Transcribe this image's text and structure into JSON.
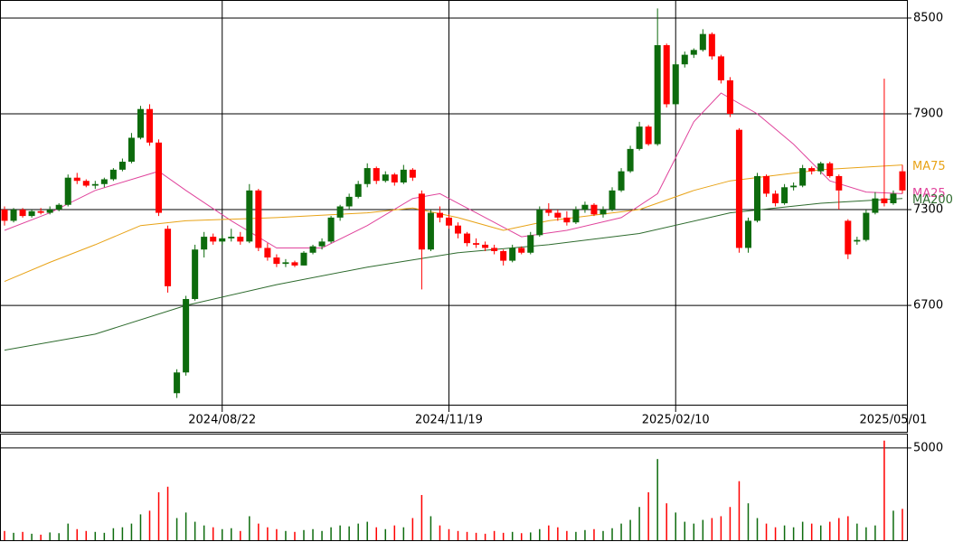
{
  "chart_data": {
    "type": "candlestick",
    "up_color": "#0d6b0d",
    "down_color": "#ff0000",
    "open": [
      7300,
      7230,
      7300,
      7260,
      7290,
      7280,
      7300,
      7330,
      7500,
      7480,
      7450,
      7460,
      7490,
      7550,
      7600,
      7750,
      7930,
      7720,
      7180,
      6150,
      6280,
      6740,
      7050,
      7130,
      7100,
      7120,
      7130,
      7100,
      7420,
      7060,
      7000,
      6960,
      6970,
      6950,
      7030,
      7070,
      7100,
      7250,
      7320,
      7380,
      7460,
      7560,
      7480,
      7520,
      7470,
      7550,
      7400,
      7050,
      7280,
      7250,
      7200,
      7150,
      7090,
      7080,
      7060,
      7040,
      6980,
      7060,
      7030,
      7140,
      7300,
      7280,
      7250,
      7220,
      7300,
      7330,
      7270,
      7300,
      7420,
      7540,
      7680,
      7820,
      7710,
      8330,
      7960,
      8210,
      8270,
      8300,
      8400,
      8260,
      8110,
      7800,
      7060,
      7230,
      7510,
      7400,
      7340,
      7440,
      7450,
      7560,
      7540,
      7590,
      7510,
      7230,
      7100,
      7110,
      7280,
      7370,
      7340,
      7540
    ],
    "high": [
      7320,
      7310,
      7310,
      7300,
      7310,
      7320,
      7340,
      7520,
      7530,
      7490,
      7480,
      7500,
      7560,
      7620,
      7780,
      7950,
      7960,
      7740,
      7200,
      6300,
      6760,
      7080,
      7160,
      7150,
      7140,
      7180,
      7160,
      7460,
      7430,
      7090,
      7020,
      6990,
      6980,
      7040,
      7080,
      7120,
      7260,
      7330,
      7400,
      7480,
      7590,
      7570,
      7540,
      7530,
      7580,
      7560,
      7420,
      7300,
      7320,
      7270,
      7220,
      7160,
      7120,
      7100,
      7080,
      7050,
      7080,
      7070,
      7160,
      7320,
      7340,
      7300,
      7290,
      7320,
      7350,
      7340,
      7320,
      7440,
      7560,
      7700,
      7850,
      7830,
      8560,
      8340,
      8230,
      8290,
      8310,
      8430,
      8410,
      8270,
      8130,
      7810,
      7250,
      7530,
      7520,
      7420,
      7460,
      7470,
      7580,
      7570,
      7600,
      7600,
      7520,
      7240,
      7130,
      7300,
      7410,
      8120,
      7420,
      7580
    ],
    "low": [
      7200,
      7220,
      7250,
      7250,
      7270,
      7270,
      7290,
      7320,
      7460,
      7440,
      7430,
      7440,
      7480,
      7540,
      7590,
      7740,
      7700,
      7260,
      6780,
      6120,
      6260,
      6730,
      7000,
      7080,
      7080,
      7100,
      7080,
      7090,
      7040,
      6980,
      6940,
      6940,
      6940,
      6950,
      7020,
      7050,
      7090,
      7230,
      7300,
      7370,
      7440,
      7460,
      7470,
      7450,
      7460,
      7480,
      6800,
      7040,
      7220,
      7180,
      7120,
      7070,
      7060,
      7040,
      7020,
      6950,
      6970,
      7020,
      7020,
      7130,
      7260,
      7230,
      7200,
      7210,
      7280,
      7260,
      7250,
      7290,
      7410,
      7530,
      7670,
      7700,
      7700,
      7940,
      7950,
      8190,
      8250,
      8290,
      8240,
      8090,
      7880,
      7030,
      7030,
      7220,
      7380,
      7320,
      7330,
      7420,
      7440,
      7520,
      7520,
      7500,
      7300,
      6990,
      7080,
      7100,
      7270,
      7320,
      7330,
      7400
    ],
    "close": [
      7230,
      7300,
      7260,
      7290,
      7280,
      7300,
      7330,
      7500,
      7480,
      7450,
      7460,
      7490,
      7550,
      7600,
      7750,
      7930,
      7720,
      7280,
      6820,
      6280,
      6740,
      7050,
      7130,
      7100,
      7120,
      7130,
      7100,
      7420,
      7060,
      7000,
      6960,
      6970,
      6950,
      7030,
      7070,
      7100,
      7250,
      7320,
      7380,
      7460,
      7560,
      7480,
      7520,
      7470,
      7550,
      7500,
      7050,
      7280,
      7250,
      7200,
      7150,
      7090,
      7080,
      7060,
      7040,
      6980,
      7060,
      7030,
      7140,
      7300,
      7280,
      7250,
      7220,
      7300,
      7330,
      7270,
      7300,
      7420,
      7540,
      7680,
      7820,
      7710,
      8330,
      7960,
      8210,
      8270,
      8300,
      8400,
      8260,
      8110,
      7900,
      7060,
      7230,
      7510,
      7400,
      7340,
      7440,
      7450,
      7560,
      7540,
      7590,
      7510,
      7420,
      7020,
      7110,
      7280,
      7370,
      7340,
      7400,
      7420
    ],
    "ylim": [
      6078,
      8613
    ],
    "yticks": [
      6700,
      7300,
      7900,
      8500
    ],
    "xticks": [
      {
        "value": 24,
        "label": "2024/08/22"
      },
      {
        "value": 49,
        "label": "2024/11/19"
      },
      {
        "value": 74,
        "label": "2025/02/10"
      },
      {
        "value": 98,
        "label": "2025/05/01"
      }
    ],
    "grid": true,
    "moving_averages": [
      {
        "name": "MA25",
        "color": "#e0449c",
        "x": [
          0,
          5,
          10,
          17,
          20,
          25,
          30,
          35,
          40,
          45,
          48,
          52,
          57,
          62,
          68,
          72,
          76,
          79,
          83,
          87,
          91,
          95,
          99
        ],
        "values": [
          7170,
          7280,
          7420,
          7540,
          7420,
          7230,
          7060,
          7060,
          7200,
          7370,
          7400,
          7280,
          7130,
          7170,
          7250,
          7400,
          7850,
          8030,
          7900,
          7710,
          7480,
          7410,
          7400
        ]
      },
      {
        "name": "MA75",
        "color": "#e8a317",
        "x": [
          0,
          5,
          10,
          15,
          20,
          30,
          40,
          45,
          50,
          55,
          60,
          70,
          76,
          80,
          90,
          99
        ],
        "values": [
          6850,
          6970,
          7080,
          7200,
          7230,
          7250,
          7280,
          7310,
          7250,
          7170,
          7230,
          7300,
          7420,
          7480,
          7550,
          7580
        ]
      },
      {
        "name": "MA200",
        "color": "#2e6b2e",
        "x": [
          0,
          10,
          20,
          30,
          40,
          50,
          60,
          70,
          80,
          90,
          99
        ],
        "values": [
          6420,
          6520,
          6700,
          6830,
          6940,
          7030,
          7080,
          7150,
          7280,
          7340,
          7370
        ]
      }
    ],
    "volume": {
      "values": [
        500,
        400,
        450,
        350,
        300,
        420,
        380,
        900,
        600,
        500,
        450,
        400,
        650,
        700,
        900,
        1400,
        1600,
        2600,
        2900,
        1200,
        1500,
        1000,
        800,
        700,
        600,
        650,
        500,
        1300,
        900,
        700,
        600,
        500,
        450,
        550,
        600,
        500,
        700,
        800,
        750,
        900,
        1000,
        700,
        600,
        800,
        700,
        1200,
        2450,
        1300,
        800,
        600,
        500,
        450,
        400,
        350,
        500,
        400,
        450,
        380,
        420,
        600,
        800,
        700,
        500,
        450,
        550,
        600,
        500,
        650,
        900,
        1100,
        1800,
        2600,
        4400,
        2000,
        1500,
        1000,
        900,
        1100,
        1200,
        1300,
        1800,
        3200,
        2000,
        1200,
        900,
        700,
        800,
        700,
        1000,
        900,
        800,
        1000,
        1200,
        1300,
        900,
        700,
        800,
        5400,
        1600,
        1700
      ],
      "ylim": [
        0,
        5780
      ],
      "yticks": [
        5000
      ]
    }
  }
}
